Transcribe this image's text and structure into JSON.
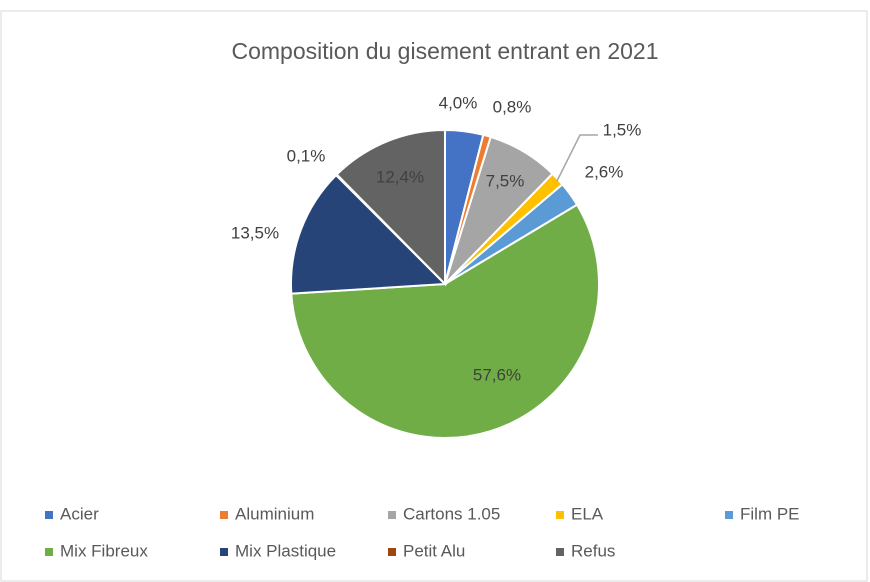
{
  "chart_data": {
    "type": "pie",
    "title": "Composition du gisement entrant en 2021",
    "categories": [
      "Acier",
      "Aluminium",
      "Cartons 1.05",
      "ELA",
      "Film PE",
      "Mix Fibreux",
      "Mix Plastique",
      "Petit Alu",
      "Refus"
    ],
    "values": [
      4.0,
      0.8,
      7.5,
      1.5,
      2.6,
      57.6,
      13.5,
      0.1,
      12.4
    ],
    "value_labels": [
      "4,0%",
      "0,8%",
      "7,5%",
      "1,5%",
      "2,6%",
      "57,6%",
      "13,5%",
      "0,1%",
      "12,4%"
    ],
    "colors": [
      "#4472c4",
      "#ed7d31",
      "#a5a5a5",
      "#ffc000",
      "#5b9bd5",
      "#70ad47",
      "#264478",
      "#9e480e",
      "#636363"
    ],
    "legend": "bottom"
  }
}
